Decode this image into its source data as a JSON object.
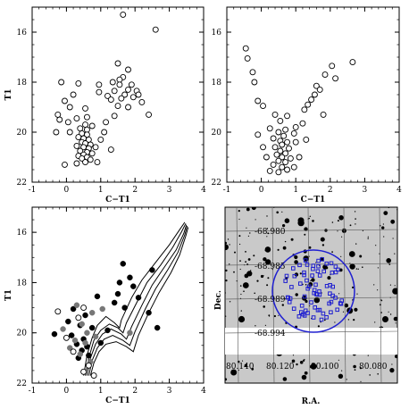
{
  "chart_data": [
    {
      "type": "scatter",
      "xlabel": "C−T1",
      "ylabel": "T1",
      "xlim": [
        -1,
        4
      ],
      "ylim": [
        22,
        15
      ],
      "x_ticks": [
        "-1",
        "0",
        "1",
        "2",
        "3",
        "4"
      ],
      "y_ticks": [
        "16",
        "18",
        "20",
        "22"
      ],
      "series": [
        {
          "marker": "open-circle",
          "points": [
            [
              1.65,
              15.3
            ],
            [
              2.6,
              15.9
            ],
            [
              1.5,
              17.25
            ],
            [
              1.8,
              17.5
            ],
            [
              1.65,
              17.8
            ],
            [
              1.55,
              17.9
            ],
            [
              1.35,
              18.0
            ],
            [
              1.9,
              18.1
            ],
            [
              1.55,
              18.1
            ],
            [
              1.8,
              18.3
            ],
            [
              2.05,
              18.35
            ],
            [
              1.4,
              18.35
            ],
            [
              1.7,
              18.5
            ],
            [
              1.95,
              18.6
            ],
            [
              2.1,
              18.5
            ],
            [
              1.2,
              18.55
            ],
            [
              1.6,
              18.65
            ],
            [
              1.3,
              18.7
            ],
            [
              2.2,
              18.8
            ],
            [
              1.5,
              18.95
            ],
            [
              1.8,
              19.0
            ],
            [
              2.4,
              19.3
            ],
            [
              1.4,
              19.35
            ],
            [
              -0.15,
              18.0
            ],
            [
              0.35,
              18.05
            ],
            [
              0.95,
              18.1
            ],
            [
              0.95,
              18.4
            ],
            [
              0.2,
              18.5
            ],
            [
              -0.05,
              18.75
            ],
            [
              0.1,
              19.0
            ],
            [
              0.55,
              19.05
            ],
            [
              0.6,
              19.4
            ],
            [
              0.3,
              19.45
            ],
            [
              -0.2,
              19.5
            ],
            [
              0.05,
              19.6
            ],
            [
              0.55,
              19.7
            ],
            [
              0.75,
              19.75
            ],
            [
              0.4,
              19.85
            ],
            [
              0.6,
              19.9
            ],
            [
              0.1,
              20.0
            ],
            [
              0.45,
              20.05
            ],
            [
              0.6,
              20.1
            ],
            [
              0.35,
              20.2
            ],
            [
              0.5,
              20.25
            ],
            [
              0.65,
              20.3
            ],
            [
              0.45,
              20.4
            ],
            [
              0.55,
              20.45
            ],
            [
              0.7,
              20.5
            ],
            [
              0.3,
              20.55
            ],
            [
              0.5,
              20.6
            ],
            [
              0.65,
              20.65
            ],
            [
              0.4,
              20.75
            ],
            [
              0.6,
              20.8
            ],
            [
              0.75,
              20.85
            ],
            [
              0.5,
              20.9
            ],
            [
              0.35,
              20.95
            ],
            [
              0.6,
              21.0
            ],
            [
              0.45,
              21.05
            ],
            [
              0.7,
              21.1
            ],
            [
              0.55,
              21.2
            ],
            [
              1.0,
              20.3
            ],
            [
              1.3,
              20.7
            ],
            [
              1.1,
              20.0
            ],
            [
              0.85,
              20.6
            ],
            [
              1.15,
              19.6
            ],
            [
              -0.05,
              21.3
            ],
            [
              0.3,
              21.25
            ],
            [
              0.9,
              21.2
            ],
            [
              -0.3,
              20.0
            ],
            [
              -0.25,
              19.3
            ]
          ]
        }
      ]
    },
    {
      "type": "scatter",
      "xlabel": "C−T1",
      "ylabel": "",
      "xlim": [
        -1,
        4
      ],
      "ylim": [
        22,
        15
      ],
      "x_ticks": [
        "-1",
        "0",
        "1",
        "2",
        "3",
        "4"
      ],
      "y_ticks": [
        "16",
        "18",
        "20",
        "22"
      ],
      "series": [
        {
          "marker": "open-circle",
          "points": [
            [
              -0.45,
              16.65
            ],
            [
              -0.4,
              17.05
            ],
            [
              2.65,
              17.2
            ],
            [
              2.05,
              17.35
            ],
            [
              -0.25,
              17.6
            ],
            [
              1.85,
              17.7
            ],
            [
              2.15,
              17.85
            ],
            [
              -0.2,
              18.0
            ],
            [
              1.6,
              18.15
            ],
            [
              1.7,
              18.3
            ],
            [
              1.55,
              18.5
            ],
            [
              1.45,
              18.7
            ],
            [
              -0.1,
              18.75
            ],
            [
              1.35,
              18.9
            ],
            [
              0.05,
              18.95
            ],
            [
              1.25,
              19.1
            ],
            [
              1.8,
              19.3
            ],
            [
              0.4,
              19.3
            ],
            [
              0.75,
              19.35
            ],
            [
              0.55,
              19.55
            ],
            [
              1.2,
              19.65
            ],
            [
              1.0,
              19.8
            ],
            [
              0.25,
              19.85
            ],
            [
              0.7,
              19.9
            ],
            [
              0.5,
              20.0
            ],
            [
              0.95,
              20.05
            ],
            [
              0.65,
              20.15
            ],
            [
              0.35,
              20.25
            ],
            [
              0.55,
              20.35
            ],
            [
              0.75,
              20.4
            ],
            [
              0.6,
              20.5
            ],
            [
              0.4,
              20.6
            ],
            [
              0.8,
              20.65
            ],
            [
              0.55,
              20.75
            ],
            [
              0.7,
              20.85
            ],
            [
              0.45,
              20.9
            ],
            [
              0.6,
              21.0
            ],
            [
              0.85,
              21.05
            ],
            [
              0.5,
              21.15
            ],
            [
              0.7,
              21.2
            ],
            [
              0.35,
              21.3
            ],
            [
              0.6,
              21.4
            ],
            [
              0.75,
              21.5
            ],
            [
              0.5,
              21.6
            ],
            [
              0.25,
              21.55
            ],
            [
              1.1,
              21.0
            ],
            [
              1.0,
              20.4
            ],
            [
              -0.1,
              20.1
            ],
            [
              0.05,
              20.6
            ],
            [
              1.3,
              20.3
            ],
            [
              0.95,
              21.4
            ],
            [
              0.15,
              21.0
            ]
          ]
        }
      ]
    },
    {
      "type": "scatter",
      "xlabel": "C−T1",
      "ylabel": "T1",
      "xlim": [
        -1,
        4
      ],
      "ylim": [
        22,
        15
      ],
      "x_ticks": [
        "-1",
        "0",
        "1",
        "2",
        "3",
        "4"
      ],
      "y_ticks": [
        "16",
        "18",
        "20",
        "22"
      ],
      "series": [
        {
          "marker": "filled-black",
          "points": [
            [
              1.65,
              17.25
            ],
            [
              2.5,
              17.5
            ],
            [
              1.85,
              17.8
            ],
            [
              1.55,
              18.0
            ],
            [
              1.95,
              18.15
            ],
            [
              1.5,
              18.45
            ],
            [
              2.1,
              18.6
            ],
            [
              1.4,
              18.8
            ],
            [
              1.7,
              19.0
            ],
            [
              2.4,
              19.2
            ],
            [
              0.2,
              19.05
            ],
            [
              0.55,
              19.3
            ],
            [
              0.05,
              19.55
            ],
            [
              0.4,
              19.7
            ],
            [
              0.75,
              19.8
            ],
            [
              -0.35,
              20.05
            ],
            [
              0.15,
              20.1
            ],
            [
              0.5,
              20.25
            ],
            [
              0.3,
              20.45
            ],
            [
              0.6,
              20.55
            ],
            [
              0.45,
              20.7
            ],
            [
              0.65,
              20.9
            ],
            [
              0.35,
              21.0
            ],
            [
              1.0,
              20.4
            ],
            [
              1.2,
              19.9
            ],
            [
              2.65,
              19.8
            ],
            [
              0.9,
              18.55
            ]
          ]
        },
        {
          "marker": "filled-grey",
          "points": [
            [
              0.3,
              18.9
            ],
            [
              0.75,
              19.2
            ],
            [
              0.45,
              19.65
            ],
            [
              -0.1,
              19.85
            ],
            [
              0.6,
              20.0
            ],
            [
              0.25,
              20.3
            ],
            [
              0.55,
              20.4
            ],
            [
              0.85,
              20.15
            ],
            [
              0.4,
              20.85
            ],
            [
              0.7,
              21.15
            ],
            [
              1.05,
              19.05
            ],
            [
              1.85,
              20.0
            ],
            [
              0.1,
              20.6
            ]
          ]
        },
        {
          "marker": "open-circle",
          "points": [
            [
              -0.25,
              19.15
            ],
            [
              0.0,
              20.2
            ],
            [
              0.5,
              19.0
            ],
            [
              0.2,
              20.75
            ],
            [
              0.65,
              21.3
            ],
            [
              0.5,
              21.55
            ],
            [
              0.8,
              21.7
            ],
            [
              0.35,
              19.4
            ]
          ]
        }
      ],
      "isochrones": [
        [
          [
            0.5,
            21.7
          ],
          [
            0.6,
            20.9
          ],
          [
            0.75,
            20.2
          ],
          [
            0.9,
            19.7
          ],
          [
            1.15,
            19.35
          ],
          [
            1.4,
            19.6
          ],
          [
            1.55,
            19.8
          ],
          [
            1.6,
            19.5
          ],
          [
            1.9,
            18.6
          ],
          [
            2.2,
            17.9
          ],
          [
            2.6,
            17.2
          ],
          [
            3.0,
            16.5
          ],
          [
            3.3,
            15.9
          ],
          [
            3.45,
            15.6
          ]
        ],
        [
          [
            0.55,
            21.7
          ],
          [
            0.65,
            21.0
          ],
          [
            0.8,
            20.3
          ],
          [
            1.0,
            19.9
          ],
          [
            1.25,
            19.65
          ],
          [
            1.5,
            19.8
          ],
          [
            1.65,
            20.0
          ],
          [
            1.75,
            19.6
          ],
          [
            2.05,
            18.8
          ],
          [
            2.35,
            18.0
          ],
          [
            2.75,
            17.3
          ],
          [
            3.1,
            16.6
          ],
          [
            3.35,
            16.0
          ],
          [
            3.48,
            15.65
          ]
        ],
        [
          [
            0.6,
            21.7
          ],
          [
            0.7,
            21.0
          ],
          [
            0.85,
            20.45
          ],
          [
            1.05,
            20.05
          ],
          [
            1.3,
            19.85
          ],
          [
            1.6,
            20.05
          ],
          [
            1.75,
            20.25
          ],
          [
            1.9,
            19.75
          ],
          [
            2.2,
            18.9
          ],
          [
            2.5,
            18.1
          ],
          [
            2.85,
            17.4
          ],
          [
            3.2,
            16.7
          ],
          [
            3.42,
            16.05
          ],
          [
            3.5,
            15.7
          ]
        ],
        [
          [
            0.65,
            21.7
          ],
          [
            0.75,
            21.1
          ],
          [
            0.9,
            20.6
          ],
          [
            1.1,
            20.25
          ],
          [
            1.35,
            20.1
          ],
          [
            1.65,
            20.3
          ],
          [
            1.85,
            20.5
          ],
          [
            2.0,
            19.95
          ],
          [
            2.3,
            19.05
          ],
          [
            2.6,
            18.25
          ],
          [
            2.95,
            17.5
          ],
          [
            3.25,
            16.8
          ],
          [
            3.45,
            16.1
          ],
          [
            3.52,
            15.75
          ]
        ],
        [
          [
            0.7,
            21.7
          ],
          [
            0.8,
            21.2
          ],
          [
            0.95,
            20.75
          ],
          [
            1.15,
            20.45
          ],
          [
            1.45,
            20.35
          ],
          [
            1.75,
            20.55
          ],
          [
            1.95,
            20.75
          ],
          [
            2.1,
            20.1
          ],
          [
            2.4,
            19.2
          ],
          [
            2.7,
            18.4
          ],
          [
            3.05,
            17.6
          ],
          [
            3.3,
            16.9
          ],
          [
            3.48,
            16.15
          ],
          [
            3.55,
            15.8
          ]
        ]
      ]
    }
  ],
  "sky_image": {
    "ylabel": "Dec.",
    "xlabel": "R.A.",
    "dec_labels": [
      "-68.980",
      "-68.985",
      "-68.989",
      "-68.994"
    ],
    "ra_labels": [
      "80.140",
      "80.120",
      "80.100",
      "80.080"
    ]
  }
}
